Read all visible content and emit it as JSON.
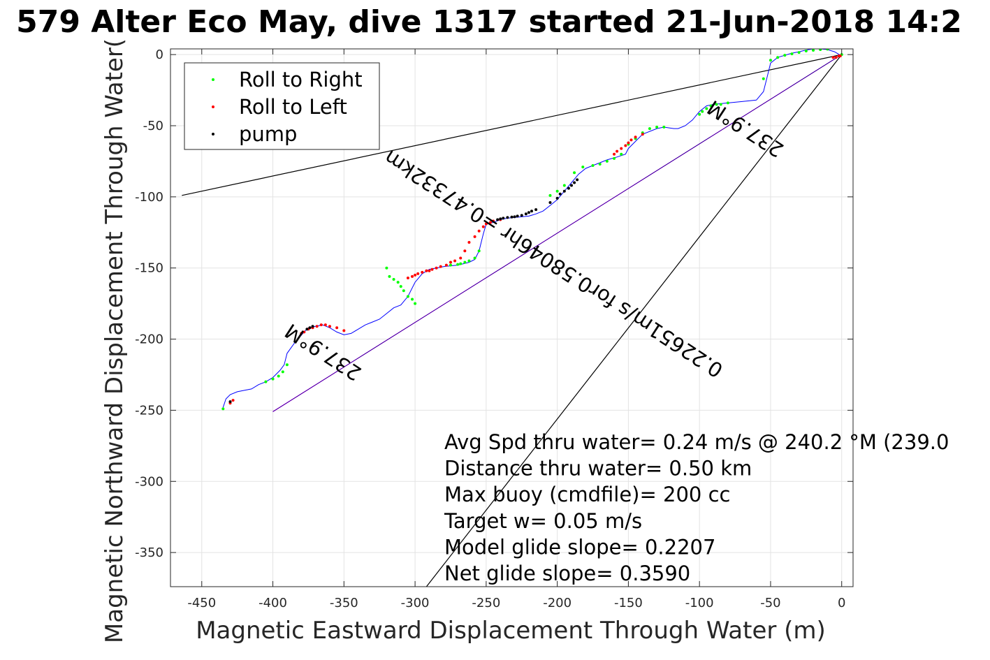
{
  "chart_data": {
    "type": "scatter",
    "title": "579 Alter Eco May, dive 1317 started 21-Jun-2018 14:2",
    "xlabel": "Magnetic Eastward Displacement Through Water (m)",
    "ylabel": "Magnetic Northward Displacement Through Water(",
    "xlim": [
      -472,
      8
    ],
    "ylim": [
      -374,
      4
    ],
    "grid": true,
    "legend_position": "top-left",
    "x_ticks": [
      -450,
      -400,
      -350,
      -300,
      -250,
      -200,
      -150,
      -100,
      -50,
      0
    ],
    "x_tick_labels": [
      "-450",
      "-400",
      "-350",
      "-300",
      "-250",
      "-200",
      "-150",
      "-100",
      "-50",
      "0"
    ],
    "y_ticks": [
      0,
      -50,
      -100,
      -150,
      -200,
      -250,
      -300,
      -350
    ],
    "y_tick_labels": [
      "0",
      "-50",
      "-100",
      "-150",
      "-200",
      "-250",
      "-300",
      "-350"
    ],
    "track": {
      "name": "track",
      "color": "#0000ff",
      "x": [
        0,
        -5,
        -10,
        -15,
        -20,
        -25,
        -30,
        -35,
        -40,
        -45,
        -50,
        -52,
        -55,
        -60,
        -70,
        -80,
        -90,
        -95,
        -100,
        -105,
        -110,
        -115,
        -118,
        -125,
        -130,
        -140,
        -145,
        -150,
        -152,
        -158,
        -165,
        -170,
        -175,
        -180,
        -185,
        -190,
        -195,
        -200,
        -205,
        -210,
        -215,
        -220,
        -225,
        -230,
        -235,
        -240,
        -245,
        -250,
        -252,
        -255,
        -258,
        -262,
        -270,
        -280,
        -285,
        -290,
        -295,
        -300,
        -305,
        -310,
        -315,
        -320,
        -325,
        -330,
        -335,
        -340,
        -345,
        -350,
        -355,
        -360,
        -365,
        -370,
        -375,
        -378,
        -385,
        -390,
        -392,
        -395,
        -400,
        -405,
        -410,
        -415,
        -420,
        -425,
        -430,
        -433,
        -435
      ],
      "y": [
        -1,
        2,
        3.5,
        4,
        4,
        3.2,
        2,
        1,
        -0.5,
        -2,
        -6,
        -14,
        -26,
        -32,
        -33,
        -34,
        -35,
        -36,
        -40,
        -46,
        -50,
        -52,
        -52,
        -51,
        -52,
        -56,
        -61,
        -66,
        -70,
        -72,
        -74,
        -76,
        -78,
        -80,
        -84,
        -90,
        -96,
        -102,
        -106,
        -110,
        -112,
        -113.5,
        -114,
        -114.5,
        -115,
        -116,
        -118,
        -119,
        -126,
        -138,
        -144,
        -146,
        -148,
        -149,
        -150,
        -151,
        -154,
        -160,
        -170,
        -176,
        -178,
        -182,
        -186,
        -188,
        -190,
        -193,
        -196,
        -197,
        -195,
        -192,
        -190,
        -191,
        -192,
        -195,
        -203,
        -210,
        -218,
        -222,
        -227,
        -230,
        -232,
        -235,
        -236,
        -237,
        -239,
        -242,
        -248
      ]
    },
    "series": [
      {
        "name": "Roll to Right",
        "color": "#00ff00",
        "x": [
          -205,
          -200,
          -195,
          -188,
          -182,
          -175,
          -170,
          -165,
          -160,
          -155,
          -150,
          -145,
          -140,
          -135,
          -130,
          -125,
          -100,
          -98,
          -95,
          -92,
          -88,
          -85,
          -80,
          -55,
          -50,
          -45,
          -40,
          -35,
          -30,
          -25,
          -20,
          -15,
          -10,
          0,
          -255,
          -258,
          -262,
          -265,
          -268,
          -270,
          -275,
          -300,
          -302,
          -305,
          -308,
          -310,
          -312,
          -315,
          -318,
          -320,
          -390,
          -393,
          -396,
          -400,
          -405,
          -435
        ],
        "y": [
          -99,
          -96,
          -92,
          -83,
          -79,
          -78,
          -77,
          -75,
          -73,
          -70,
          -63,
          -59,
          -55,
          -52,
          -51,
          -51,
          -42,
          -40,
          -38,
          -36,
          -35,
          -35,
          -34,
          -17,
          -4,
          -2,
          -0.5,
          0.5,
          1.5,
          2.5,
          3,
          3.5,
          3.8,
          0,
          -138,
          -143,
          -145,
          -146,
          -147,
          -147.5,
          -148,
          -175,
          -172,
          -170,
          -166,
          -163,
          -160,
          -158,
          -156,
          -150,
          -218,
          -223,
          -226,
          -228,
          -230,
          -249
        ]
      },
      {
        "name": "Roll to Left",
        "color": "#ff0000",
        "x": [
          -140,
          -145,
          -148,
          -150,
          -152,
          -155,
          -158,
          -160,
          -240,
          -245,
          -247,
          -250,
          -252,
          -255,
          -258,
          -262,
          -265,
          -268,
          -272,
          -275,
          -278,
          -282,
          -285,
          -288,
          -290,
          -292,
          -295,
          -298,
          -300,
          -302,
          -305,
          -350,
          -355,
          -360,
          -363,
          -366,
          -369,
          -372,
          -375,
          -378,
          -380,
          -428,
          -430,
          -1,
          -2,
          -4,
          -6
        ],
        "y": [
          -56,
          -58,
          -60,
          -62,
          -64,
          -66,
          -68,
          -70,
          -116,
          -117,
          -118,
          -119,
          -121,
          -124,
          -128,
          -132,
          -138,
          -143,
          -145,
          -146,
          -148,
          -149,
          -150,
          -151,
          -152,
          -152,
          -153,
          -154,
          -155,
          -156,
          -157,
          -194,
          -192,
          -191,
          -190,
          -190,
          -191,
          -192,
          -193,
          -195,
          -196,
          -243,
          -245,
          -1,
          -1,
          -2,
          -2
        ]
      },
      {
        "name": "pump",
        "color": "#000000",
        "x": [
          -215,
          -218,
          -220,
          -222,
          -225,
          -228,
          -230,
          -232,
          -235,
          -238,
          -240,
          -242,
          -205,
          -200,
          -198,
          -195,
          -192,
          -190,
          -188,
          -186,
          -372,
          -374,
          -376,
          -430
        ],
        "y": [
          -109,
          -110,
          -111,
          -112,
          -113,
          -113.5,
          -114,
          -114.2,
          -114.5,
          -115,
          -115.5,
          -116,
          -104,
          -101,
          -98,
          -96,
          -94,
          -92,
          -90,
          -88,
          -191,
          -192,
          -193,
          -244
        ]
      }
    ],
    "reference_lines": [
      {
        "name": "upper-reference",
        "color": "#000000",
        "x": [
          0,
          -464
        ],
        "y": [
          0,
          -99
        ]
      },
      {
        "name": "lower-reference",
        "color": "#000000",
        "x": [
          0,
          -292
        ],
        "y": [
          0,
          -374
        ]
      },
      {
        "name": "model-line",
        "color": "#ff00ff",
        "x": [
          0,
          -400
        ],
        "y": [
          0,
          -251
        ]
      },
      {
        "name": "net-line",
        "color": "#000080",
        "x": [
          0,
          -400
        ],
        "y": [
          0,
          -251
        ]
      }
    ],
    "rotated_labels": [
      {
        "text": "0.22651m/s for0.58046hr =0.47332km",
        "x": -200,
        "y": -143,
        "angle_deg": 213
      },
      {
        "text": "237.9°M",
        "x": -362,
        "y": -205,
        "angle_deg": 213
      },
      {
        "text": "237.9°M",
        "x": -65,
        "y": -48,
        "angle_deg": 213
      }
    ],
    "annotations": [
      "Avg Spd thru water=  0.24 m/s @ 240.2 °M (239.0",
      "Distance thru water=  0.50 km",
      "Max buoy (cmdfile)= 200 cc",
      "Target w= 0.05 m/s",
      "Model glide slope= 0.2207",
      "Net glide slope= 0.3590"
    ]
  }
}
